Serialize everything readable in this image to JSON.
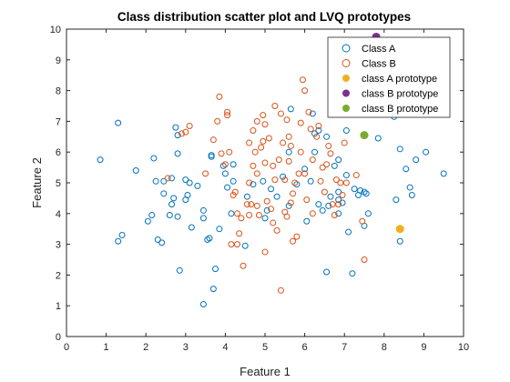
{
  "chart_data": {
    "type": "scatter",
    "title": "Class distribution scatter plot and LVQ prototypes",
    "xlabel": "Feature 1",
    "ylabel": "Feature 2",
    "xlim": [
      0,
      10
    ],
    "ylim": [
      0,
      10
    ],
    "xticks": [
      "0",
      "1",
      "2",
      "3",
      "4",
      "5",
      "6",
      "7",
      "8",
      "9",
      "10"
    ],
    "yticks": [
      "0",
      "1",
      "2",
      "3",
      "4",
      "5",
      "6",
      "7",
      "8",
      "9",
      "10"
    ],
    "grid": false,
    "legend_position": "top-right",
    "series": [
      {
        "name": "Class A",
        "marker": "open-circle",
        "color": "#0072BD",
        "points": [
          [
            0.85,
            5.75
          ],
          [
            1.3,
            6.95
          ],
          [
            1.4,
            3.3
          ],
          [
            1.3,
            3.1
          ],
          [
            1.75,
            5.4
          ],
          [
            2.05,
            3.75
          ],
          [
            2.15,
            3.95
          ],
          [
            2.25,
            5.05
          ],
          [
            2.2,
            5.8
          ],
          [
            2.3,
            3.15
          ],
          [
            2.4,
            3.05
          ],
          [
            2.45,
            4.65
          ],
          [
            2.45,
            5.05
          ],
          [
            2.6,
            3.95
          ],
          [
            2.65,
            5.15
          ],
          [
            2.65,
            4.3
          ],
          [
            2.7,
            4.5
          ],
          [
            2.75,
            6.8
          ],
          [
            2.8,
            5.95
          ],
          [
            2.8,
            6.55
          ],
          [
            2.8,
            3.9
          ],
          [
            2.85,
            2.15
          ],
          [
            3.0,
            5.1
          ],
          [
            3.0,
            4.45
          ],
          [
            3.05,
            4.6
          ],
          [
            3.1,
            5.0
          ],
          [
            3.15,
            3.55
          ],
          [
            3.3,
            4.9
          ],
          [
            3.45,
            3.85
          ],
          [
            3.45,
            4.1
          ],
          [
            3.45,
            1.05
          ],
          [
            3.55,
            3.15
          ],
          [
            3.6,
            3.2
          ],
          [
            3.65,
            5.85
          ],
          [
            3.65,
            5.9
          ],
          [
            3.7,
            1.55
          ],
          [
            3.75,
            2.2
          ],
          [
            3.85,
            3.5
          ],
          [
            3.95,
            5.55
          ],
          [
            4.0,
            5.3
          ],
          [
            4.05,
            4.85
          ],
          [
            4.15,
            4.0
          ],
          [
            4.2,
            5.05
          ],
          [
            4.2,
            5.6
          ],
          [
            4.5,
            2.95
          ],
          [
            4.55,
            4.55
          ],
          [
            4.7,
            4.95
          ],
          [
            4.95,
            5.05
          ],
          [
            5.0,
            3.85
          ],
          [
            5.05,
            4.1
          ],
          [
            5.15,
            4.8
          ],
          [
            5.3,
            4.55
          ],
          [
            5.45,
            5.2
          ],
          [
            5.6,
            4.25
          ],
          [
            5.6,
            6.0
          ],
          [
            5.65,
            7.4
          ],
          [
            5.8,
            4.95
          ],
          [
            6.0,
            5.45
          ],
          [
            6.05,
            3.75
          ],
          [
            6.15,
            5.05
          ],
          [
            6.2,
            7.25
          ],
          [
            6.25,
            6.0
          ],
          [
            6.25,
            6.6
          ],
          [
            6.35,
            6.7
          ],
          [
            6.35,
            4.3
          ],
          [
            6.45,
            4.1
          ],
          [
            6.55,
            2.1
          ],
          [
            6.55,
            6.5
          ],
          [
            6.6,
            4.25
          ],
          [
            6.65,
            4.55
          ],
          [
            6.75,
            5.55
          ],
          [
            6.85,
            4.0
          ],
          [
            6.85,
            4.45
          ],
          [
            6.85,
            4.7
          ],
          [
            6.85,
            5.75
          ],
          [
            6.95,
            4.35
          ],
          [
            7.05,
            5.25
          ],
          [
            7.05,
            6.7
          ],
          [
            7.1,
            3.4
          ],
          [
            7.2,
            2.05
          ],
          [
            7.25,
            4.8
          ],
          [
            7.35,
            4.6
          ],
          [
            7.4,
            4.75
          ],
          [
            7.5,
            3.6
          ],
          [
            7.5,
            4.7
          ],
          [
            7.55,
            4.65
          ],
          [
            7.6,
            4.0
          ],
          [
            7.85,
            6.45
          ],
          [
            7.95,
            7.35
          ],
          [
            8.25,
            7.15
          ],
          [
            8.3,
            4.45
          ],
          [
            8.4,
            3.1
          ],
          [
            8.4,
            6.1
          ],
          [
            8.55,
            5.45
          ],
          [
            8.65,
            4.85
          ],
          [
            8.7,
            4.6
          ],
          [
            8.8,
            5.75
          ],
          [
            9.05,
            6.0
          ],
          [
            9.5,
            5.3
          ]
        ]
      },
      {
        "name": "Class B",
        "marker": "open-circle",
        "color": "#D95319",
        "points": [
          [
            2.55,
            5.15
          ],
          [
            2.9,
            6.6
          ],
          [
            3.0,
            6.65
          ],
          [
            3.1,
            6.85
          ],
          [
            3.5,
            5.3
          ],
          [
            3.7,
            6.4
          ],
          [
            3.8,
            7.0
          ],
          [
            3.85,
            7.8
          ],
          [
            3.9,
            5.95
          ],
          [
            4.0,
            5.6
          ],
          [
            4.05,
            7.3
          ],
          [
            4.05,
            7.2
          ],
          [
            4.1,
            6.0
          ],
          [
            4.2,
            4.6
          ],
          [
            4.25,
            4.7
          ],
          [
            4.3,
            3.0
          ],
          [
            4.3,
            4.0
          ],
          [
            4.35,
            3.35
          ],
          [
            4.4,
            3.85
          ],
          [
            4.45,
            2.3
          ],
          [
            4.55,
            4.3
          ],
          [
            4.6,
            6.3
          ],
          [
            4.6,
            3.95
          ],
          [
            4.6,
            5.0
          ],
          [
            4.7,
            6.7
          ],
          [
            4.7,
            5.55
          ],
          [
            4.75,
            6.0
          ],
          [
            4.8,
            4.25
          ],
          [
            4.8,
            5.3
          ],
          [
            4.8,
            7.0
          ],
          [
            4.85,
            3.95
          ],
          [
            4.9,
            6.15
          ],
          [
            4.95,
            6.35
          ],
          [
            4.95,
            7.2
          ],
          [
            5.0,
            6.9
          ],
          [
            5.0,
            5.65
          ],
          [
            5.0,
            2.75
          ],
          [
            5.05,
            4.4
          ],
          [
            5.1,
            6.45
          ],
          [
            5.15,
            4.15
          ],
          [
            5.2,
            3.7
          ],
          [
            5.2,
            5.55
          ],
          [
            5.25,
            5.1
          ],
          [
            5.3,
            3.45
          ],
          [
            5.35,
            5.75
          ],
          [
            5.4,
            1.5
          ],
          [
            5.4,
            7.25
          ],
          [
            5.45,
            6.3
          ],
          [
            5.5,
            4.05
          ],
          [
            5.5,
            5.1
          ],
          [
            5.55,
            3.9
          ],
          [
            5.6,
            5.7
          ],
          [
            5.65,
            4.35
          ],
          [
            5.65,
            6.2
          ],
          [
            5.7,
            3.1
          ],
          [
            5.75,
            5.0
          ],
          [
            5.8,
            3.25
          ],
          [
            5.85,
            5.3
          ],
          [
            5.9,
            6.95
          ],
          [
            5.9,
            6.0
          ],
          [
            6.0,
            5.3
          ],
          [
            6.05,
            4.45
          ],
          [
            6.1,
            7.3
          ],
          [
            6.15,
            6.75
          ],
          [
            6.2,
            5.75
          ],
          [
            6.3,
            6.5
          ],
          [
            6.35,
            6.85
          ],
          [
            6.4,
            5.05
          ],
          [
            6.45,
            5.5
          ],
          [
            6.5,
            4.7
          ],
          [
            6.55,
            5.6
          ],
          [
            6.6,
            6.2
          ],
          [
            6.65,
            5.95
          ],
          [
            6.7,
            4.3
          ],
          [
            6.75,
            3.95
          ],
          [
            6.8,
            5.1
          ],
          [
            6.85,
            4.3
          ],
          [
            6.9,
            5.0
          ],
          [
            6.95,
            4.6
          ],
          [
            7.0,
            6.3
          ],
          [
            7.05,
            5.0
          ],
          [
            7.1,
            7.75
          ],
          [
            7.3,
            5.25
          ],
          [
            7.45,
            3.75
          ],
          [
            7.5,
            2.5
          ],
          [
            5.95,
            8.35
          ],
          [
            6.0,
            8.0
          ],
          [
            4.15,
            3.0
          ],
          [
            4.65,
            4.3
          ],
          [
            5.25,
            7.5
          ],
          [
            5.55,
            7.05
          ],
          [
            5.6,
            6.5
          ],
          [
            5.7,
            4.65
          ],
          [
            6.2,
            4.0
          ]
        ]
      },
      {
        "name": "class A prototype",
        "marker": "filled-circle",
        "color": "#EDB120",
        "points": [
          [
            8.4,
            3.5
          ]
        ]
      },
      {
        "name": "class B prototype",
        "marker": "filled-circle",
        "color": "#7E2F8E",
        "points": [
          [
            7.8,
            9.75
          ]
        ]
      },
      {
        "name": "class B prototype",
        "marker": "filled-circle",
        "color": "#77AC30",
        "points": [
          [
            7.5,
            6.55
          ]
        ]
      }
    ]
  }
}
